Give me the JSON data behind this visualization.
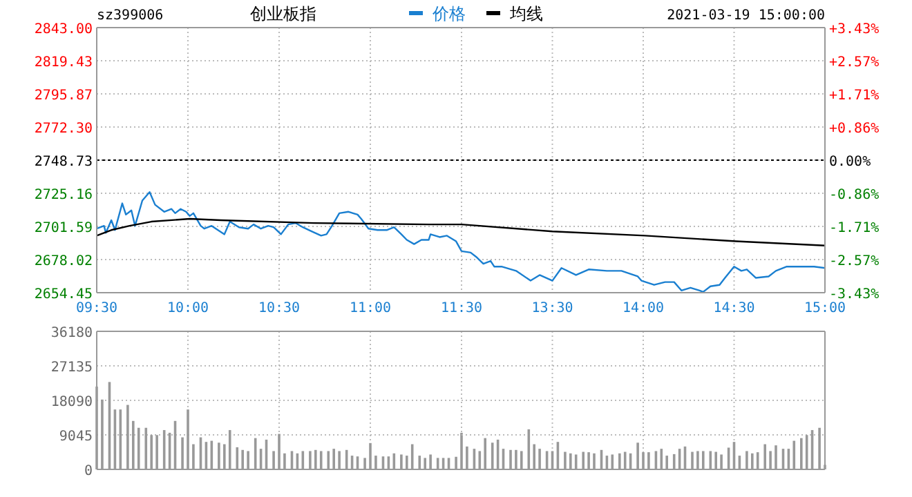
{
  "chart_data": [
    {
      "type": "line",
      "title": "创业板指",
      "annotations": [
        "sz399006",
        "2021-03-19 15:00:00"
      ],
      "legend": "top",
      "grid": true,
      "xlim": [
        9.5,
        11.5
      ],
      "xticks": [
        {
          "value": 9.5,
          "label": "09:30"
        },
        {
          "value": 10,
          "label": "10:00"
        },
        {
          "value": 10.5,
          "label": "10:30"
        },
        {
          "value": 11,
          "label": "11:00"
        },
        {
          "value": 11.5,
          "label": "11:30"
        }
      ],
      "ylim": [
        2654.45,
        2843
      ],
      "yticks": [
        {
          "value": 2654.45,
          "label": "2654.45"
        },
        {
          "value": 2678.02,
          "label": "2678.02"
        },
        {
          "value": 2701.59,
          "label": "2701.59"
        },
        {
          "value": 2725.16,
          "label": "2725.16"
        },
        {
          "value": 2748.73,
          "label": "2748.73"
        },
        {
          "value": 2772.3,
          "label": "2772.30"
        },
        {
          "value": 2795.87,
          "label": "2795.87"
        },
        {
          "value": 2819.43,
          "label": "2819.43"
        },
        {
          "value": 2843,
          "label": "2843.00"
        }
      ],
      "ref_lines": [
        {
          "axis": "y",
          "value": 2748.73,
          "color": "#000000",
          "line_style": "dashed"
        }
      ],
      "series": [
        {
          "name": "价格",
          "color": "#1a7fd0",
          "x": [
            9.5,
            9.54,
            9.55,
            9.58,
            9.6,
            9.64,
            9.66,
            9.69,
            9.71,
            9.75,
            9.79,
            9.82,
            9.87,
            9.91,
            9.93,
            9.96,
            9.99,
            10.01,
            10.03,
            10.07,
            10.09,
            10.13,
            10.2,
            10.23,
            10.28,
            10.33,
            10.36,
            10.4,
            10.44,
            10.47,
            10.51,
            10.55,
            10.59,
            10.63,
            10.68,
            10.73,
            10.76,
            10.79,
            10.83,
            10.88,
            10.93,
            10.95,
            10.99,
            11.04,
            11.09,
            11.13,
            11.17,
            11.2,
            11.24,
            11.28,
            11.32,
            11.33,
            11.38,
            11.42,
            11.47,
            11.5
          ],
          "values": [
            2700,
            2702,
            2697,
            2706,
            2699,
            2718,
            2710,
            2713,
            2702,
            2720,
            2726,
            2717,
            2712,
            2714,
            2711,
            2714,
            2712,
            2709,
            2711,
            2702,
            2700,
            2702,
            2696,
            2705,
            2701,
            2700,
            2703,
            2700,
            2702,
            2701,
            2696,
            2703,
            2704,
            2701,
            2698,
            2695,
            2696,
            2702,
            2711,
            2712,
            2710,
            2707,
            2700,
            2699,
            2699,
            2701,
            2696,
            2692,
            2689,
            2692,
            2692,
            2696,
            2694,
            2695,
            2691,
            2684
          ]
        },
        {
          "name": "均线",
          "color": "#000000",
          "x": [
            9.5,
            9.58,
            9.68,
            9.8,
            10.01,
            10.18,
            10.69,
            11.32,
            11.5
          ],
          "values": [
            2695,
            2699,
            2702,
            2705,
            2707,
            2706,
            2704,
            2703,
            2703
          ]
        }
      ]
    },
    {
      "type": "line",
      "grid": true,
      "xlim": [
        13,
        15
      ],
      "xticks": [
        {
          "value": 13.5,
          "label": "13:30"
        },
        {
          "value": 14,
          "label": "14:00"
        },
        {
          "value": 14.5,
          "label": "14:30"
        },
        {
          "value": 15,
          "label": "15:00"
        }
      ],
      "tick_labels": "x",
      "ylim": [
        2654.45,
        2843
      ],
      "yticks": [
        2654.45,
        2678.02,
        2701.59,
        2725.16,
        2748.73,
        2772.3,
        2795.87,
        2819.43,
        2843
      ],
      "y2lim": [
        -3.43,
        3.43
      ],
      "y2ticks": [
        {
          "value": -3.43,
          "label": "-3.43%"
        },
        {
          "value": -2.57,
          "label": "-2.57%"
        },
        {
          "value": -1.71,
          "label": "-1.71%"
        },
        {
          "value": -0.86,
          "label": "-0.86%"
        },
        {
          "value": 0,
          "label": "0.00%"
        },
        {
          "value": 0.86,
          "label": "+0.86%"
        },
        {
          "value": 1.71,
          "label": "+1.71%"
        },
        {
          "value": 2.57,
          "label": "+2.57%"
        },
        {
          "value": 3.43,
          "label": "+3.43%"
        }
      ],
      "ref_lines": [
        {
          "axis": "y",
          "value": 2748.73,
          "color": "#000000",
          "line_style": "dashed"
        }
      ],
      "series": [
        {
          "color": "#1a7fd0",
          "x": [
            13,
            13.05,
            13.08,
            13.12,
            13.16,
            13.18,
            13.22,
            13.3,
            13.38,
            13.43,
            13.5,
            13.55,
            13.63,
            13.7,
            13.8,
            13.88,
            13.97,
            13.99,
            14.06,
            14.12,
            14.17,
            14.21,
            14.26,
            14.31,
            14.33,
            14.37,
            14.42,
            14.45,
            14.5,
            14.54,
            14.57,
            14.62,
            14.69,
            14.73,
            14.79,
            14.86,
            14.94,
            15
          ],
          "values": [
            2684,
            2683,
            2680,
            2675,
            2677,
            2673,
            2673,
            2670,
            2663,
            2667,
            2663,
            2672,
            2667,
            2671,
            2670,
            2670,
            2666,
            2663,
            2660,
            2662,
            2662,
            2656,
            2658,
            2656,
            2655,
            2659,
            2660,
            2665,
            2673,
            2670,
            2671,
            2665,
            2666,
            2670,
            2673,
            2673,
            2673,
            2672
          ]
        },
        {
          "color": "#000000",
          "x": [
            13,
            13.5,
            14.01,
            14.51,
            15
          ],
          "values": [
            2703,
            2698,
            2695,
            2691,
            2688
          ]
        }
      ]
    },
    {
      "type": "bar",
      "grid": true,
      "tick_labels": "y",
      "color": "#999999",
      "xlim": [
        9.5,
        11.5
      ],
      "xticks": [
        {
          "value": 9.5,
          "label": null
        },
        {
          "value": 10,
          "label": null
        },
        {
          "value": 10.5,
          "label": null
        },
        {
          "value": 11,
          "label": null
        },
        {
          "value": 11.5,
          "label": null
        }
      ],
      "ylim": [
        0,
        36180
      ],
      "yticks": [
        0,
        9045,
        18090,
        27135,
        36180
      ],
      "x": [
        9.5,
        9.53,
        9.57,
        9.6,
        9.63,
        9.67,
        9.7,
        9.73,
        9.77,
        9.8,
        9.83,
        9.87,
        9.9,
        9.93,
        9.97,
        10,
        10.03,
        10.07,
        10.1,
        10.13,
        10.17,
        10.2,
        10.23,
        10.27,
        10.3,
        10.33,
        10.37,
        10.4,
        10.43,
        10.47,
        10.5,
        10.53,
        10.57,
        10.6,
        10.63,
        10.67,
        10.7,
        10.73,
        10.77,
        10.8,
        10.83,
        10.87,
        10.9,
        10.93,
        10.97,
        11,
        11.03,
        11.07,
        11.1,
        11.13,
        11.17,
        11.2,
        11.23,
        11.27,
        11.3,
        11.33,
        11.37,
        11.4,
        11.43,
        11.47,
        11.5
      ],
      "values": [
        21700,
        18300,
        22900,
        15700,
        15700,
        16900,
        12700,
        10900,
        10900,
        9000,
        9000,
        10300,
        9600,
        12700,
        8400,
        15700,
        6600,
        8400,
        7200,
        7500,
        7000,
        6600,
        10300,
        5800,
        5100,
        4800,
        8200,
        5400,
        7800,
        4800,
        9300,
        4200,
        4800,
        4200,
        4800,
        4800,
        5100,
        4800,
        4800,
        5400,
        4800,
        5100,
        3600,
        3400,
        3000,
        6900,
        3600,
        3400,
        3400,
        4200,
        3900,
        3600,
        6600,
        3600,
        3000,
        3900,
        3000,
        3000,
        3000,
        3300,
        9600
      ]
    },
    {
      "type": "bar",
      "grid": true,
      "tick_labels": false,
      "color": "#999999",
      "xlim": [
        13,
        15
      ],
      "xticks": [
        {
          "value": 13.5,
          "label": null
        },
        {
          "value": 14,
          "label": null
        },
        {
          "value": 14.5,
          "label": null
        },
        {
          "value": 15,
          "label": null
        }
      ],
      "ylim": [
        0,
        36180
      ],
      "yticks": [
        0,
        9045,
        18090,
        27135,
        36180
      ],
      "x": [
        13.03,
        13.07,
        13.1,
        13.13,
        13.17,
        13.2,
        13.23,
        13.27,
        13.3,
        13.33,
        13.37,
        13.4,
        13.43,
        13.47,
        13.5,
        13.53,
        13.57,
        13.6,
        13.63,
        13.67,
        13.7,
        13.73,
        13.77,
        13.8,
        13.83,
        13.87,
        13.9,
        13.93,
        13.97,
        14,
        14.03,
        14.07,
        14.1,
        14.13,
        14.17,
        14.2,
        14.23,
        14.27,
        14.3,
        14.33,
        14.37,
        14.4,
        14.43,
        14.47,
        14.5,
        14.53,
        14.57,
        14.6,
        14.63,
        14.67,
        14.7,
        14.73,
        14.77,
        14.8,
        14.83,
        14.87,
        14.9,
        14.93,
        14.97,
        15
      ],
      "values": [
        6000,
        5400,
        4800,
        8200,
        7000,
        7800,
        5400,
        5100,
        5100,
        4800,
        10500,
        6600,
        5400,
        4800,
        4800,
        7200,
        4600,
        4200,
        3900,
        4600,
        4500,
        4200,
        5100,
        3600,
        3900,
        4200,
        4600,
        4200,
        7000,
        4500,
        4500,
        4800,
        5400,
        3600,
        4000,
        5400,
        6000,
        4600,
        4800,
        4800,
        4800,
        4600,
        3900,
        5700,
        7200,
        3600,
        4800,
        4200,
        4500,
        6600,
        4800,
        6300,
        5400,
        5400,
        7500,
        8200,
        9000,
        10300,
        10900,
        1200
      ]
    }
  ]
}
